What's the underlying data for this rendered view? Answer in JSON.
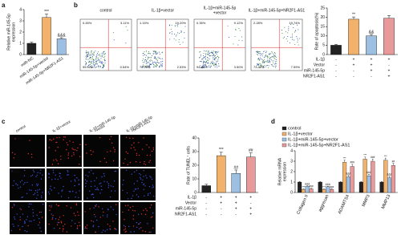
{
  "panel_labels": [
    "a",
    "b",
    "c",
    "d"
  ],
  "flow_plots": [
    {
      "title": [
        "control"
      ],
      "quadrants": [
        "0.45%",
        "3.11%",
        "95.92%",
        "0.54%"
      ]
    },
    {
      "title": [
        "IL-1β+vector"
      ],
      "quadrants": [
        "1.15%",
        "19.20%",
        "70.28%",
        "2.53%"
      ]
    },
    {
      "title": [
        "IL-1β+miR-145-5p",
        "+vector"
      ],
      "quadrants": [
        "0.35%",
        "9.12%",
        "94.59%",
        "3.50%"
      ]
    },
    {
      "title": [
        "IL-1β+miR-145-5p+NR2F1-AS1"
      ],
      "quadrants": [
        "2.28%",
        "19.74%",
        "73.45%",
        "7.59%"
      ]
    }
  ],
  "microscopy": {
    "columns": [
      [
        "control"
      ],
      [
        "IL-1β+vector"
      ],
      [
        "IL-1β+miR-145-5p",
        "+vector"
      ],
      [
        "IL-1β+miR-145-5p",
        "+NR2F1-AS1"
      ]
    ],
    "rows": [
      "TUNEL",
      "DAPI",
      "MERGE"
    ]
  },
  "chart_data": [
    {
      "type": "bar",
      "y_label": [
        "Relative miR-145-5p",
        "expression"
      ],
      "categories": [
        "miR-NC",
        "miR-145-5p+vector",
        "miR-145-5p+NR2F1-AS1"
      ],
      "values": [
        1.0,
        3.3,
        1.4
      ],
      "errors": [
        0.1,
        0.3,
        0.1
      ],
      "colors": [
        "#222222",
        "#f2b26b",
        "#9dbfe2"
      ],
      "annotations": [
        {
          "category": 1,
          "text": "***"
        },
        {
          "category": 2,
          "text": "&&&"
        }
      ],
      "ylim": [
        0,
        4
      ],
      "yticks": [
        0,
        1,
        2,
        3,
        4
      ]
    },
    {
      "type": "bar",
      "y_label": [
        "Rate of apoptosis(%)"
      ],
      "values": [
        5,
        19,
        10,
        19.5
      ],
      "errors": [
        0.5,
        1.2,
        0.8,
        1.5
      ],
      "colors": [
        "#222222",
        "#f2b26b",
        "#9dbfe2",
        "#e89a9a"
      ],
      "annotations": [
        {
          "category": 1,
          "text": "**"
        },
        {
          "category": 2,
          "text": "&&"
        }
      ],
      "conditions": [
        {
          "name": "IL-1β",
          "signs": [
            "-",
            "+",
            "+",
            "+"
          ]
        },
        {
          "name": "Vector",
          "signs": [
            "-",
            "+",
            "+",
            "-"
          ]
        },
        {
          "name": "miR-145-5p",
          "signs": [
            "-",
            "-",
            "+",
            "+"
          ]
        },
        {
          "name": "NR2F1-AS1",
          "signs": [
            "-",
            "-",
            "-",
            "+"
          ]
        }
      ],
      "ylim": [
        0,
        25
      ],
      "yticks": [
        0,
        5,
        10,
        15,
        20,
        25
      ]
    },
    {
      "type": "bar",
      "y_label": [
        "Rate of TUNEL⁺ cells"
      ],
      "values": [
        5,
        27,
        14,
        26
      ],
      "errors": [
        1,
        2.5,
        2.5,
        3
      ],
      "colors": [
        "#222222",
        "#f2b26b",
        "#9dbfe2",
        "#e89a9a"
      ],
      "annotations": [
        {
          "category": 1,
          "text": "***"
        },
        {
          "category": 2,
          "text": "##"
        },
        {
          "category": 3,
          "text": "##"
        }
      ],
      "conditions": [
        {
          "name": "IL-1β",
          "signs": [
            "-",
            "+",
            "+",
            "+"
          ]
        },
        {
          "name": "Vector",
          "signs": [
            "-",
            "+",
            "+",
            "-"
          ]
        },
        {
          "name": "miR-145-5p",
          "signs": [
            "-",
            "-",
            "+",
            "+"
          ]
        },
        {
          "name": "NR2F1-AS1",
          "signs": [
            "-",
            "-",
            "-",
            "+"
          ]
        }
      ],
      "ylim": [
        0,
        40
      ],
      "yticks": [
        0,
        10,
        20,
        30,
        40
      ]
    },
    {
      "type": "grouped_bar",
      "y_label": [
        "Relative mRNA",
        "expression"
      ],
      "categories": [
        "Collagen II",
        "aggrecan",
        "ADAMTS4",
        "MMP3",
        "MMP13"
      ],
      "series": [
        {
          "name": "control",
          "color": "#222222",
          "values": [
            1,
            1,
            1,
            1,
            1
          ],
          "errors": [
            0.05,
            0.05,
            0.05,
            0.05,
            0.05
          ]
        },
        {
          "name": "IL-1β+vector",
          "color": "#f2b26b",
          "values": [
            0.3,
            0.3,
            2.9,
            3.2,
            3.1
          ],
          "errors": [
            0.05,
            0.05,
            0.2,
            0.2,
            0.2
          ],
          "annotations": [
            "***",
            "***",
            "***",
            "***",
            "***"
          ]
        },
        {
          "name": "IL-1β+miR-145-5p+vector",
          "color": "#9dbfe2",
          "values": [
            0.6,
            0.55,
            1.5,
            1.6,
            1.4
          ],
          "errors": [
            0.05,
            0.05,
            0.15,
            0.15,
            0.15
          ],
          "annotations": [
            "&&&",
            "&&&",
            "&&&",
            "&&&",
            "&&&"
          ]
        },
        {
          "name": "IL-1β+miR-145-5p+NR2F1-AS1",
          "color": "#e89a9a",
          "values": [
            0.35,
            0.3,
            2.5,
            3.0,
            2.6
          ],
          "errors": [
            0.05,
            0.05,
            0.2,
            0.2,
            0.2
          ],
          "annotations": [
            "###",
            "###",
            "###",
            "###",
            "##"
          ]
        }
      ],
      "ylim": [
        0,
        4
      ],
      "yticks": [
        0,
        1,
        2,
        3,
        4
      ]
    }
  ]
}
